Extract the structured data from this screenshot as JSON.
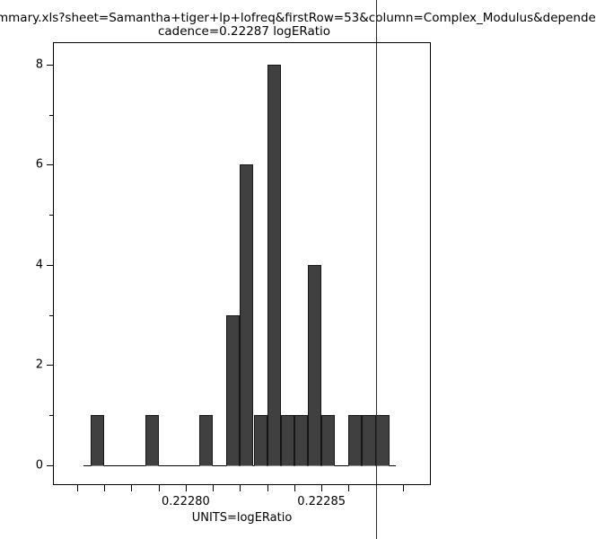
{
  "title": {
    "line1": "mmary.xls?sheet=Samantha+tiger+lp+lofreq&firstRow=53&column=Complex_Modulus&depende",
    "line2": "cadence=0.22287 logERatio"
  },
  "chart_data": {
    "type": "bar",
    "subtype": "histogram",
    "title": "cadence=0.22287 logERatio",
    "xlabel": "UNITS=logERatio",
    "ylabel": "",
    "bin_start": 0.222765,
    "bin_width": 5e-06,
    "counts": [
      1,
      0,
      0,
      0,
      1,
      0,
      0,
      0,
      1,
      0,
      3,
      6,
      1,
      8,
      1,
      1,
      4,
      1,
      0,
      1,
      1,
      1
    ],
    "total_count": 31,
    "xlim": [
      0.2227511,
      0.2228903
    ],
    "ylim": [
      -0.4,
      8.45
    ],
    "x_ticks": [
      0.22276,
      0.22277,
      0.22278,
      0.22279,
      0.2228,
      0.22281,
      0.22282,
      0.22283,
      0.22284,
      0.22285,
      0.22286,
      0.22287,
      0.22288
    ],
    "x_tick_labels": [
      {
        "value": 0.2228,
        "label": "0.22280"
      },
      {
        "value": 0.22285,
        "label": "0.22285"
      }
    ],
    "y_major_ticks": [
      {
        "value": 0,
        "label": "0"
      },
      {
        "value": 2,
        "label": "2"
      },
      {
        "value": 4,
        "label": "4"
      },
      {
        "value": 6,
        "label": "6"
      },
      {
        "value": 8,
        "label": "8"
      }
    ],
    "y_minor_ticks": [
      1,
      3,
      5,
      7
    ],
    "marker_line": {
      "value": 0.22287
    },
    "grid": false,
    "legend": false,
    "colors": {
      "bar_fill": "#404040",
      "bar_edge": "#161616",
      "bar_base": "#8f8f8f",
      "axis": "#000000",
      "marker_line": "#2e2e2e",
      "text": "#000000",
      "background": "#ffffff"
    }
  }
}
